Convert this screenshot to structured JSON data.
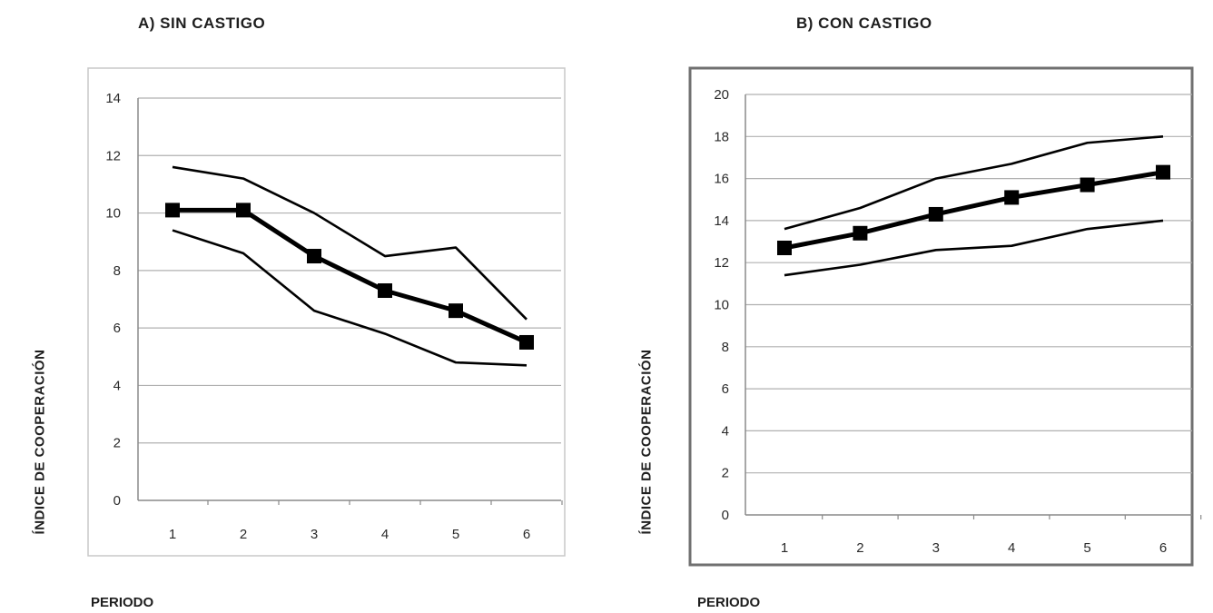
{
  "chart_data": [
    {
      "type": "line",
      "title": "A)  SIN  CASTIGO",
      "xlabel": "PERIODO",
      "ylabel": "ÍNDICE  DE  COOPERACIÓN",
      "x": [
        1,
        2,
        3,
        4,
        5,
        6
      ],
      "ylim": [
        0,
        14
      ],
      "yticks": [
        0,
        2,
        4,
        6,
        8,
        10,
        12,
        14
      ],
      "grid": true,
      "series": [
        {
          "values": [
            11.6,
            11.2,
            10.0,
            8.5,
            8.8,
            6.3
          ],
          "style": "thin"
        },
        {
          "values": [
            10.1,
            10.1,
            8.5,
            7.3,
            6.6,
            5.5
          ],
          "style": "thick-square"
        },
        {
          "values": [
            9.4,
            8.6,
            6.6,
            5.8,
            4.8,
            4.7
          ],
          "style": "thin"
        }
      ]
    },
    {
      "type": "line",
      "title": "B) CON CASTIGO",
      "xlabel": "PERIODO",
      "ylabel": "ÍNDICE  DE  COOPERACIÓN",
      "x": [
        1,
        2,
        3,
        4,
        5,
        6
      ],
      "ylim": [
        0,
        20
      ],
      "yticks": [
        0,
        2,
        4,
        6,
        8,
        10,
        12,
        14,
        16,
        18,
        20
      ],
      "grid": true,
      "series": [
        {
          "values": [
            13.6,
            14.6,
            16.0,
            16.7,
            17.7,
            18.0
          ],
          "style": "thin"
        },
        {
          "values": [
            12.7,
            13.4,
            14.3,
            15.1,
            15.7,
            16.3
          ],
          "style": "thick-square"
        },
        {
          "values": [
            11.4,
            11.9,
            12.6,
            12.8,
            13.6,
            14.0
          ],
          "style": "thin"
        }
      ]
    }
  ]
}
